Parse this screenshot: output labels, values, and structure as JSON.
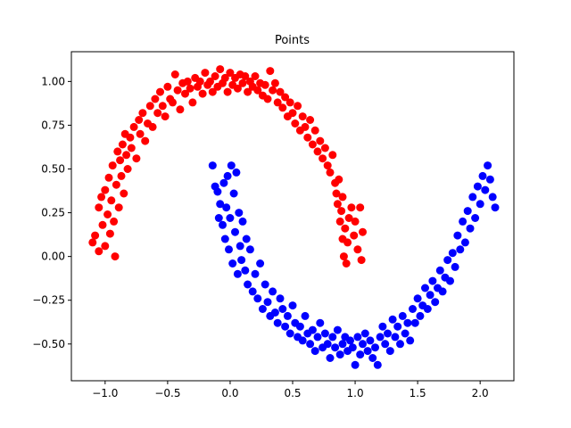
{
  "chart_data": {
    "type": "scatter",
    "title": "Points",
    "xlabel": "",
    "ylabel": "",
    "xlim": [
      -1.27,
      2.27
    ],
    "ylim": [
      -0.71,
      1.17
    ],
    "xticks": [
      -1.0,
      -0.5,
      0.0,
      0.5,
      1.0,
      1.5,
      2.0
    ],
    "xtick_labels": [
      "−1.0",
      "−0.5",
      "0.0",
      "0.5",
      "1.0",
      "1.5",
      "2.0"
    ],
    "yticks": [
      -0.5,
      -0.25,
      0.0,
      0.25,
      0.5,
      0.75,
      1.0
    ],
    "ytick_labels": [
      "−0.50",
      "−0.25",
      "0.00",
      "0.25",
      "0.50",
      "0.75",
      "1.00"
    ],
    "grid": false,
    "series": [
      {
        "color": "#ff0000",
        "points": [
          [
            -1.1,
            0.08
          ],
          [
            -1.08,
            0.12
          ],
          [
            -1.05,
            0.28
          ],
          [
            -1.05,
            0.03
          ],
          [
            -1.03,
            0.34
          ],
          [
            -1.02,
            0.18
          ],
          [
            -1.0,
            0.06
          ],
          [
            -1.0,
            0.38
          ],
          [
            -0.98,
            0.24
          ],
          [
            -0.97,
            0.45
          ],
          [
            -0.96,
            0.13
          ],
          [
            -0.95,
            0.32
          ],
          [
            -0.94,
            0.52
          ],
          [
            -0.93,
            0.2
          ],
          [
            -0.92,
            0.0
          ],
          [
            -0.91,
            0.41
          ],
          [
            -0.9,
            0.6
          ],
          [
            -0.89,
            0.28
          ],
          [
            -0.88,
            0.55
          ],
          [
            -0.87,
            0.46
          ],
          [
            -0.86,
            0.64
          ],
          [
            -0.85,
            0.36
          ],
          [
            -0.84,
            0.7
          ],
          [
            -0.83,
            0.58
          ],
          [
            -0.82,
            0.5
          ],
          [
            -0.8,
            0.68
          ],
          [
            -0.79,
            0.62
          ],
          [
            -0.77,
            0.74
          ],
          [
            -0.75,
            0.56
          ],
          [
            -0.73,
            0.78
          ],
          [
            -0.72,
            0.7
          ],
          [
            -0.7,
            0.82
          ],
          [
            -0.68,
            0.66
          ],
          [
            -0.66,
            0.76
          ],
          [
            -0.64,
            0.86
          ],
          [
            -0.62,
            0.74
          ],
          [
            -0.6,
            0.9
          ],
          [
            -0.58,
            0.82
          ],
          [
            -0.56,
            0.94
          ],
          [
            -0.54,
            0.86
          ],
          [
            -0.52,
            0.8
          ],
          [
            -0.5,
            0.97
          ],
          [
            -0.48,
            0.9
          ],
          [
            -0.46,
            0.88
          ],
          [
            -0.44,
            1.04
          ],
          [
            -0.42,
            0.95
          ],
          [
            -0.4,
            0.84
          ],
          [
            -0.38,
            0.99
          ],
          [
            -0.36,
            0.93
          ],
          [
            -0.34,
            1.0
          ],
          [
            -0.32,
            0.96
          ],
          [
            -0.3,
            0.88
          ],
          [
            -0.28,
            1.02
          ],
          [
            -0.26,
            0.97
          ],
          [
            -0.24,
            1.0
          ],
          [
            -0.22,
            0.93
          ],
          [
            -0.2,
            1.05
          ],
          [
            -0.18,
            0.98
          ],
          [
            -0.16,
            1.0
          ],
          [
            -0.14,
            0.94
          ],
          [
            -0.12,
            1.03
          ],
          [
            -0.1,
            0.97
          ],
          [
            -0.08,
            1.07
          ],
          [
            -0.06,
            0.99
          ],
          [
            -0.04,
            1.02
          ],
          [
            -0.02,
            0.94
          ],
          [
            0.0,
            1.05
          ],
          [
            0.02,
            0.98
          ],
          [
            0.04,
            1.02
          ],
          [
            0.06,
            0.96
          ],
          [
            0.08,
            1.04
          ],
          [
            0.1,
            0.99
          ],
          [
            0.12,
            1.03
          ],
          [
            0.14,
            0.94
          ],
          [
            0.16,
            1.0
          ],
          [
            0.18,
            0.97
          ],
          [
            0.2,
            1.03
          ],
          [
            0.22,
            0.95
          ],
          [
            0.24,
            0.99
          ],
          [
            0.26,
            0.92
          ],
          [
            0.28,
            0.98
          ],
          [
            0.3,
            0.9
          ],
          [
            0.32,
            1.06
          ],
          [
            0.34,
            0.95
          ],
          [
            0.36,
            0.99
          ],
          [
            0.38,
            0.88
          ],
          [
            0.4,
            0.94
          ],
          [
            0.42,
            0.85
          ],
          [
            0.44,
            0.91
          ],
          [
            0.46,
            0.8
          ],
          [
            0.48,
            0.88
          ],
          [
            0.5,
            0.82
          ],
          [
            0.52,
            0.76
          ],
          [
            0.54,
            0.86
          ],
          [
            0.56,
            0.72
          ],
          [
            0.58,
            0.8
          ],
          [
            0.6,
            0.74
          ],
          [
            0.62,
            0.68
          ],
          [
            0.64,
            0.78
          ],
          [
            0.66,
            0.64
          ],
          [
            0.68,
            0.72
          ],
          [
            0.7,
            0.6
          ],
          [
            0.72,
            0.66
          ],
          [
            0.74,
            0.56
          ],
          [
            0.76,
            0.62
          ],
          [
            0.78,
            0.52
          ],
          [
            0.8,
            0.48
          ],
          [
            0.82,
            0.58
          ],
          [
            0.84,
            0.42
          ],
          [
            0.85,
            0.36
          ],
          [
            0.86,
            0.3
          ],
          [
            0.87,
            0.44
          ],
          [
            0.88,
            0.2
          ],
          [
            0.89,
            0.26
          ],
          [
            0.9,
            0.1
          ],
          [
            0.9,
            0.34
          ],
          [
            0.91,
            0.0
          ],
          [
            0.92,
            0.16
          ],
          [
            0.93,
            -0.04
          ],
          [
            0.94,
            0.08
          ],
          [
            0.95,
            0.22
          ],
          [
            0.97,
            0.28
          ],
          [
            0.99,
            0.12
          ],
          [
            1.0,
            0.2
          ],
          [
            1.02,
            0.04
          ],
          [
            1.04,
            0.28
          ],
          [
            1.05,
            -0.02
          ],
          [
            1.06,
            0.14
          ]
        ]
      },
      {
        "color": "#0000ff",
        "points": [
          [
            -0.14,
            0.52
          ],
          [
            -0.12,
            0.4
          ],
          [
            -0.1,
            0.37
          ],
          [
            -0.09,
            0.22
          ],
          [
            -0.08,
            0.3
          ],
          [
            -0.06,
            0.18
          ],
          [
            -0.05,
            0.42
          ],
          [
            -0.04,
            0.1
          ],
          [
            -0.03,
            0.28
          ],
          [
            -0.02,
            0.46
          ],
          [
            -0.01,
            0.04
          ],
          [
            0.0,
            0.22
          ],
          [
            0.01,
            0.52
          ],
          [
            0.02,
            -0.04
          ],
          [
            0.03,
            0.36
          ],
          [
            0.04,
            0.14
          ],
          [
            0.05,
            0.48
          ],
          [
            0.06,
            -0.1
          ],
          [
            0.07,
            0.25
          ],
          [
            0.08,
            0.06
          ],
          [
            0.09,
            -0.02
          ],
          [
            0.1,
            0.2
          ],
          [
            0.12,
            -0.08
          ],
          [
            0.13,
            0.1
          ],
          [
            0.14,
            -0.16
          ],
          [
            0.16,
            0.04
          ],
          [
            0.18,
            -0.2
          ],
          [
            0.2,
            -0.1
          ],
          [
            0.22,
            -0.24
          ],
          [
            0.24,
            -0.04
          ],
          [
            0.26,
            -0.3
          ],
          [
            0.28,
            -0.16
          ],
          [
            0.3,
            -0.26
          ],
          [
            0.32,
            -0.34
          ],
          [
            0.34,
            -0.2
          ],
          [
            0.36,
            -0.32
          ],
          [
            0.38,
            -0.38
          ],
          [
            0.4,
            -0.24
          ],
          [
            0.42,
            -0.3
          ],
          [
            0.44,
            -0.4
          ],
          [
            0.46,
            -0.34
          ],
          [
            0.48,
            -0.44
          ],
          [
            0.5,
            -0.28
          ],
          [
            0.52,
            -0.38
          ],
          [
            0.54,
            -0.46
          ],
          [
            0.56,
            -0.4
          ],
          [
            0.58,
            -0.48
          ],
          [
            0.6,
            -0.34
          ],
          [
            0.62,
            -0.44
          ],
          [
            0.64,
            -0.5
          ],
          [
            0.66,
            -0.42
          ],
          [
            0.68,
            -0.54
          ],
          [
            0.7,
            -0.46
          ],
          [
            0.72,
            -0.38
          ],
          [
            0.74,
            -0.52
          ],
          [
            0.76,
            -0.44
          ],
          [
            0.78,
            -0.5
          ],
          [
            0.8,
            -0.58
          ],
          [
            0.82,
            -0.46
          ],
          [
            0.84,
            -0.52
          ],
          [
            0.86,
            -0.42
          ],
          [
            0.88,
            -0.56
          ],
          [
            0.9,
            -0.5
          ],
          [
            0.92,
            -0.46
          ],
          [
            0.94,
            -0.54
          ],
          [
            0.96,
            -0.48
          ],
          [
            0.98,
            -0.52
          ],
          [
            1.0,
            -0.62
          ],
          [
            1.02,
            -0.46
          ],
          [
            1.04,
            -0.56
          ],
          [
            1.06,
            -0.5
          ],
          [
            1.08,
            -0.44
          ],
          [
            1.1,
            -0.54
          ],
          [
            1.12,
            -0.48
          ],
          [
            1.14,
            -0.58
          ],
          [
            1.16,
            -0.52
          ],
          [
            1.18,
            -0.62
          ],
          [
            1.2,
            -0.46
          ],
          [
            1.22,
            -0.4
          ],
          [
            1.24,
            -0.5
          ],
          [
            1.26,
            -0.44
          ],
          [
            1.28,
            -0.54
          ],
          [
            1.3,
            -0.36
          ],
          [
            1.32,
            -0.46
          ],
          [
            1.34,
            -0.4
          ],
          [
            1.36,
            -0.5
          ],
          [
            1.38,
            -0.34
          ],
          [
            1.4,
            -0.44
          ],
          [
            1.42,
            -0.38
          ],
          [
            1.44,
            -0.48
          ],
          [
            1.46,
            -0.3
          ],
          [
            1.48,
            -0.38
          ],
          [
            1.5,
            -0.24
          ],
          [
            1.52,
            -0.34
          ],
          [
            1.54,
            -0.28
          ],
          [
            1.56,
            -0.18
          ],
          [
            1.58,
            -0.3
          ],
          [
            1.6,
            -0.22
          ],
          [
            1.62,
            -0.14
          ],
          [
            1.64,
            -0.26
          ],
          [
            1.66,
            -0.18
          ],
          [
            1.68,
            -0.08
          ],
          [
            1.7,
            -0.2
          ],
          [
            1.72,
            -0.12
          ],
          [
            1.74,
            -0.02
          ],
          [
            1.76,
            -0.14
          ],
          [
            1.78,
            0.02
          ],
          [
            1.8,
            -0.06
          ],
          [
            1.82,
            0.12
          ],
          [
            1.84,
            0.04
          ],
          [
            1.86,
            0.2
          ],
          [
            1.88,
            0.08
          ],
          [
            1.9,
            0.26
          ],
          [
            1.92,
            0.16
          ],
          [
            1.94,
            0.34
          ],
          [
            1.96,
            0.22
          ],
          [
            1.98,
            0.4
          ],
          [
            2.0,
            0.3
          ],
          [
            2.02,
            0.46
          ],
          [
            2.04,
            0.38
          ],
          [
            2.06,
            0.52
          ],
          [
            2.08,
            0.44
          ],
          [
            2.1,
            0.34
          ],
          [
            2.12,
            0.28
          ]
        ]
      }
    ]
  }
}
